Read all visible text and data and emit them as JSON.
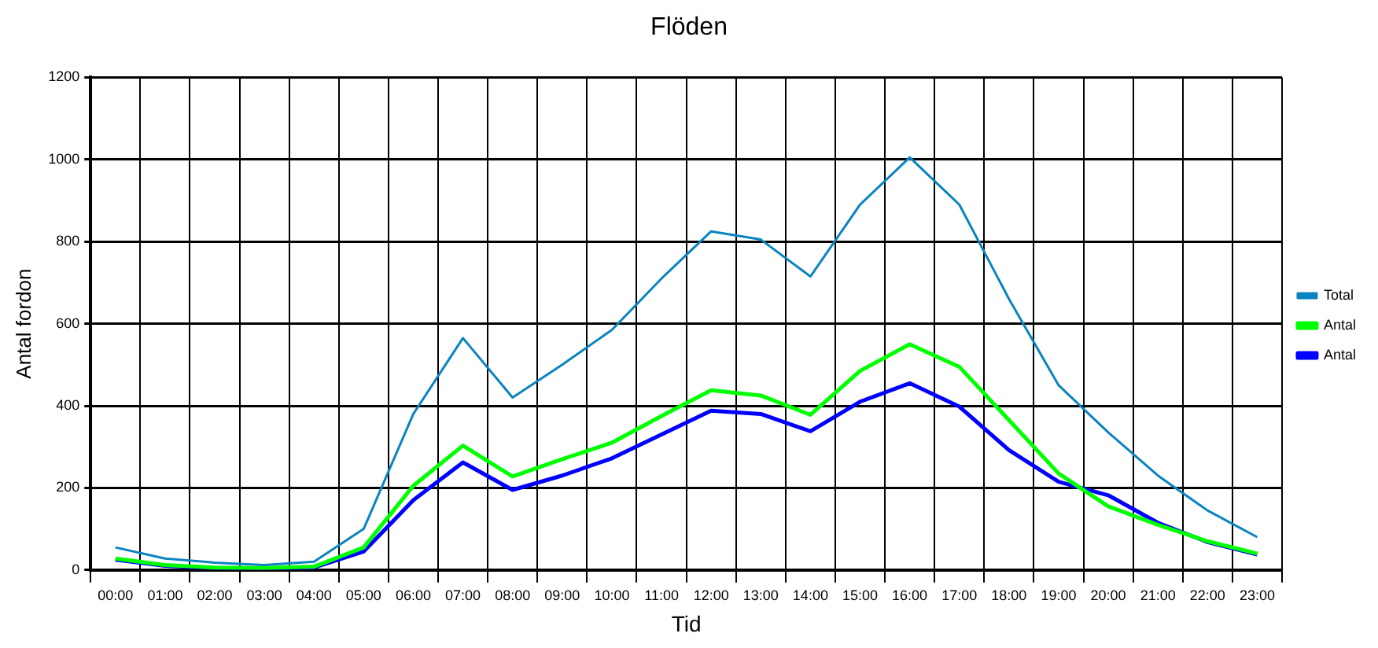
{
  "chart_data": {
    "type": "line",
    "title": "Flöden",
    "xlabel": "Tid",
    "ylabel": "Antal fordon",
    "categories": [
      "00:00",
      "01:00",
      "02:00",
      "03:00",
      "04:00",
      "05:00",
      "06:00",
      "07:00",
      "08:00",
      "09:00",
      "10:00",
      "11:00",
      "12:00",
      "13:00",
      "14:00",
      "15:00",
      "16:00",
      "17:00",
      "18:00",
      "19:00",
      "20:00",
      "21:00",
      "22:00",
      "23:00"
    ],
    "series": [
      {
        "name": "Total",
        "color": "#0a84c0",
        "values": [
          55,
          28,
          18,
          12,
          20,
          100,
          380,
          565,
          420,
          500,
          585,
          710,
          825,
          805,
          715,
          890,
          1005,
          890,
          660,
          450,
          335,
          230,
          145,
          80
        ]
      },
      {
        "name": "Antal",
        "color": "#00ff00",
        "values": [
          28,
          12,
          6,
          5,
          8,
          55,
          205,
          303,
          228,
          270,
          310,
          375,
          438,
          425,
          378,
          485,
          550,
          495,
          365,
          235,
          155,
          110,
          70,
          40
        ]
      },
      {
        "name": "Antal",
        "color": "#0000ff",
        "values": [
          25,
          10,
          5,
          4,
          6,
          45,
          170,
          262,
          195,
          230,
          272,
          330,
          388,
          380,
          338,
          410,
          455,
          398,
          292,
          215,
          182,
          115,
          68,
          38
        ]
      }
    ],
    "ylim": [
      0,
      1200
    ],
    "yticks": [
      0,
      200,
      400,
      600,
      800,
      1000,
      1200
    ],
    "grid": true,
    "legend": "right",
    "marker": "none",
    "line_style": "solid"
  }
}
